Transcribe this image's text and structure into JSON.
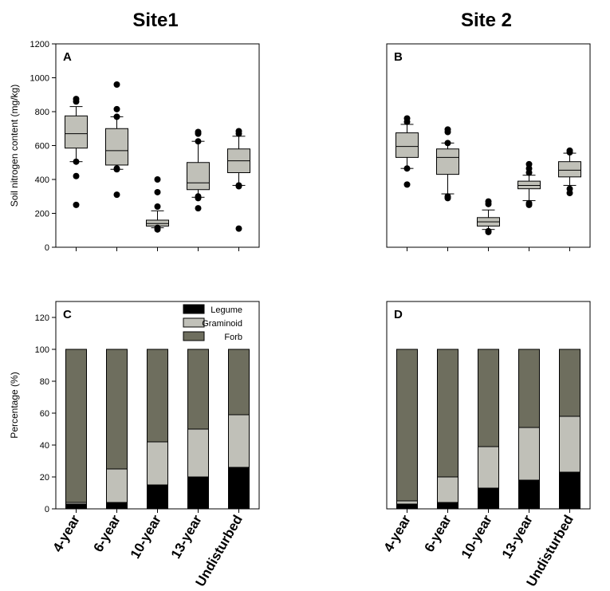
{
  "titles": {
    "site1": "Site1",
    "site2": "Site 2"
  },
  "colors": {
    "legume": "#000000",
    "graminoid": "#c0c0b8",
    "forb": "#6e6e5e",
    "box": "#c0c0b8",
    "frame": "#000000"
  },
  "chart_data": [
    {
      "id": "A",
      "panel_label": "A",
      "type": "box",
      "ylabel": "Soil nitrogen content (mg/kg)",
      "ylim": [
        0,
        1200
      ],
      "yticks": [
        0,
        200,
        400,
        600,
        800,
        1000,
        1200
      ],
      "categories": [
        "4-year",
        "6-year",
        "10-year",
        "13-year",
        "Undisturbed"
      ],
      "boxes": [
        {
          "q1": 585,
          "median": 670,
          "q3": 775,
          "whislo": 505,
          "whishi": 830,
          "fliers": [
            875,
            860,
            505,
            420,
            250
          ]
        },
        {
          "q1": 485,
          "median": 570,
          "q3": 700,
          "whislo": 460,
          "whishi": 770,
          "fliers": [
            960,
            815,
            770,
            465,
            460,
            310
          ]
        },
        {
          "q1": 125,
          "median": 140,
          "q3": 160,
          "whislo": 115,
          "whishi": 215,
          "fliers": [
            400,
            325,
            240,
            115,
            105
          ]
        },
        {
          "q1": 340,
          "median": 380,
          "q3": 500,
          "whislo": 295,
          "whishi": 625,
          "fliers": [
            680,
            670,
            625,
            300,
            290,
            230
          ]
        },
        {
          "q1": 440,
          "median": 510,
          "q3": 580,
          "whislo": 365,
          "whishi": 655,
          "fliers": [
            685,
            670,
            365,
            360,
            110
          ]
        }
      ]
    },
    {
      "id": "B",
      "panel_label": "B",
      "type": "box",
      "ylabel": "",
      "ylim": [
        0,
        1200
      ],
      "yticks": [],
      "categories": [
        "4-year",
        "6-year",
        "10-year",
        "13-year",
        "Undisturbed"
      ],
      "boxes": [
        {
          "q1": 530,
          "median": 595,
          "q3": 675,
          "whislo": 465,
          "whishi": 725,
          "fliers": [
            760,
            740,
            465,
            370
          ]
        },
        {
          "q1": 430,
          "median": 530,
          "q3": 580,
          "whislo": 315,
          "whishi": 615,
          "fliers": [
            695,
            680,
            615,
            300,
            290
          ]
        },
        {
          "q1": 125,
          "median": 150,
          "q3": 175,
          "whislo": 105,
          "whishi": 220,
          "fliers": [
            270,
            255,
            95,
            90
          ]
        },
        {
          "q1": 345,
          "median": 365,
          "q3": 390,
          "whislo": 275,
          "whishi": 425,
          "fliers": [
            490,
            465,
            440,
            260,
            250
          ]
        },
        {
          "q1": 415,
          "median": 455,
          "q3": 505,
          "whislo": 365,
          "whishi": 555,
          "fliers": [
            570,
            560,
            345,
            320
          ]
        }
      ]
    },
    {
      "id": "C",
      "panel_label": "C",
      "type": "stacked-bar",
      "ylabel": "Percentage (%)",
      "ylim": [
        0,
        130
      ],
      "yticks": [
        0,
        20,
        40,
        60,
        80,
        100,
        120
      ],
      "categories": [
        "4-year",
        "6-year",
        "10-year",
        "13-year",
        "Undisturbed"
      ],
      "series": [
        {
          "name": "Legume",
          "values": [
            3,
            4,
            15,
            20,
            26
          ]
        },
        {
          "name": "Graminoid",
          "values": [
            1,
            21,
            27,
            30,
            33
          ]
        },
        {
          "name": "Forb",
          "values": [
            96,
            75,
            58,
            50,
            41
          ]
        }
      ],
      "legend": [
        "Legume",
        "Graminoid",
        "Forb"
      ]
    },
    {
      "id": "D",
      "panel_label": "D",
      "type": "stacked-bar",
      "ylabel": "",
      "ylim": [
        0,
        130
      ],
      "yticks": [],
      "categories": [
        "4-year",
        "6-year",
        "10-year",
        "13-year",
        "Undisturbed"
      ],
      "series": [
        {
          "name": "Legume",
          "values": [
            3,
            4,
            13,
            18,
            23
          ]
        },
        {
          "name": "Graminoid",
          "values": [
            2,
            16,
            26,
            33,
            35
          ]
        },
        {
          "name": "Forb",
          "values": [
            95,
            80,
            61,
            49,
            42
          ]
        }
      ]
    }
  ]
}
